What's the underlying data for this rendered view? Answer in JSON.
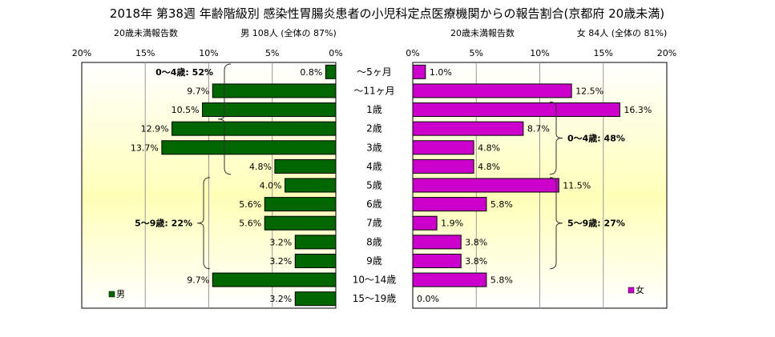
{
  "title": "2018年 第38週 年齢階級別 感染性胃腸炎患者の小児科定点医療機関からの報告割合(京都府 20歳未満)",
  "chart_data": [
    {
      "type": "bar",
      "orientation": "horizontal",
      "direction": "right-to-left",
      "panel": "male",
      "subtitle_left": "20歳未満報告数",
      "subtitle_right": "男 108人 (全体の 87%)",
      "categories": [
        "〜5ヶ月",
        "〜11ヶ月",
        "1歳",
        "2歳",
        "3歳",
        "4歳",
        "5歳",
        "6歳",
        "7歳",
        "8歳",
        "9歳",
        "10〜14歳",
        "15〜19歳"
      ],
      "values": [
        0.8,
        9.7,
        10.5,
        12.9,
        13.7,
        4.8,
        4.0,
        5.6,
        5.6,
        3.2,
        3.2,
        9.7,
        3.2
      ],
      "value_labels": [
        "0.8%",
        "9.7%",
        "10.5%",
        "12.9%",
        "13.7%",
        "4.8%",
        "4.0%",
        "5.6%",
        "5.6%",
        "3.2%",
        "3.2%",
        "9.7%",
        "3.2%"
      ],
      "xlim": [
        0,
        20
      ],
      "ticks": [
        "20%",
        "15%",
        "10%",
        "5%",
        "0%"
      ],
      "legend": "男",
      "legend_position": "bottom-left",
      "bar_color": "#006600",
      "annotations": [
        {
          "text": "0〜4歳: 52%",
          "span": [
            0,
            5
          ]
        },
        {
          "text": "5〜9歳: 22%",
          "span": [
            6,
            10
          ]
        }
      ]
    },
    {
      "type": "bar",
      "orientation": "horizontal",
      "direction": "left-to-right",
      "panel": "female",
      "subtitle_left": "20歳未満報告数",
      "subtitle_right": "女 84人 (全体の 81%)",
      "categories": [
        "〜5ヶ月",
        "〜11ヶ月",
        "1歳",
        "2歳",
        "3歳",
        "4歳",
        "5歳",
        "6歳",
        "7歳",
        "8歳",
        "9歳",
        "10〜14歳",
        "15〜19歳"
      ],
      "values": [
        1.0,
        12.5,
        16.3,
        8.7,
        4.8,
        4.8,
        11.5,
        5.8,
        1.9,
        3.8,
        3.8,
        5.8,
        0.0
      ],
      "value_labels": [
        "1.0%",
        "12.5%",
        "16.3%",
        "8.7%",
        "4.8%",
        "4.8%",
        "11.5%",
        "5.8%",
        "1.9%",
        "3.8%",
        "3.8%",
        "5.8%",
        "0.0%"
      ],
      "xlim": [
        0,
        20
      ],
      "ticks": [
        "0%",
        "5%",
        "10%",
        "15%",
        "20%"
      ],
      "legend": "女",
      "legend_position": "bottom-right",
      "bar_color": "#cc00cc",
      "annotations": [
        {
          "text": "0〜4歳: 48%",
          "span": [
            2,
            5
          ]
        },
        {
          "text": "5〜9歳: 27%",
          "span": [
            6,
            10
          ]
        }
      ]
    }
  ]
}
